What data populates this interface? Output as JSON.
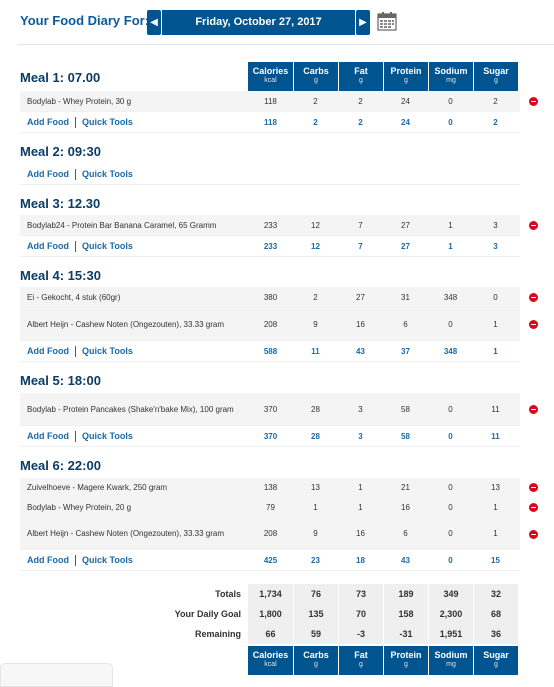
{
  "header": {
    "label": "Your Food Diary For:",
    "date": "Friday, October 27, 2017",
    "prev_arrow": "◀",
    "next_arrow": "▶",
    "calendar_icon": "calendar-icon"
  },
  "columns": [
    {
      "title": "Calories",
      "unit": "kcal"
    },
    {
      "title": "Carbs",
      "unit": "g"
    },
    {
      "title": "Fat",
      "unit": "g"
    },
    {
      "title": "Protein",
      "unit": "g"
    },
    {
      "title": "Sodium",
      "unit": "mg"
    },
    {
      "title": "Sugar",
      "unit": "g"
    }
  ],
  "links": {
    "add_food": "Add Food",
    "quick_tools": "Quick Tools"
  },
  "meals": [
    {
      "title": "Meal 1: 07.00",
      "foods": [
        {
          "name": "Bodylab - Whey Protein, 30 g",
          "values": [
            "118",
            "2",
            "2",
            "24",
            "0",
            "2"
          ]
        }
      ],
      "totals": [
        "118",
        "2",
        "2",
        "24",
        "0",
        "2"
      ]
    },
    {
      "title": "Meal 2: 09:30",
      "foods": [],
      "totals": []
    },
    {
      "title": "Meal 3: 12.30",
      "foods": [
        {
          "name": "Bodylab24 - Protein Bar Banana Caramel, 65 Gramm",
          "values": [
            "233",
            "12",
            "7",
            "27",
            "1",
            "3"
          ]
        }
      ],
      "totals": [
        "233",
        "12",
        "7",
        "27",
        "1",
        "3"
      ]
    },
    {
      "title": "Meal 4: 15:30",
      "foods": [
        {
          "name": "Ei - Gekocht, 4 stuk (60gr)",
          "values": [
            "380",
            "2",
            "27",
            "31",
            "348",
            "0"
          ]
        },
        {
          "name": "Albert Heijn - Cashew Noten (Ongezouten), 33.33 gram",
          "values": [
            "208",
            "9",
            "16",
            "6",
            "0",
            "1"
          ]
        }
      ],
      "totals": [
        "588",
        "11",
        "43",
        "37",
        "348",
        "1"
      ]
    },
    {
      "title": "Meal 5: 18:00",
      "foods": [
        {
          "name": "Bodylab - Protein Pancakes (Shake'n'bake Mix), 100 gram",
          "values": [
            "370",
            "28",
            "3",
            "58",
            "0",
            "11"
          ]
        }
      ],
      "totals": [
        "370",
        "28",
        "3",
        "58",
        "0",
        "11"
      ]
    },
    {
      "title": "Meal 6: 22:00",
      "foods": [
        {
          "name": "Zuivelhoeve - Magere Kwark, 250 gram",
          "values": [
            "138",
            "13",
            "1",
            "21",
            "0",
            "13"
          ]
        },
        {
          "name": "Bodylab - Whey Protein, 20 g",
          "values": [
            "79",
            "1",
            "1",
            "16",
            "0",
            "1"
          ]
        },
        {
          "name": "Albert Heijn - Cashew Noten (Ongezouten), 33.33 gram",
          "values": [
            "208",
            "9",
            "16",
            "6",
            "0",
            "1"
          ]
        }
      ],
      "totals": [
        "425",
        "23",
        "18",
        "43",
        "0",
        "15"
      ]
    }
  ],
  "summary": {
    "totals": {
      "label": "Totals",
      "values": [
        "1,734",
        "76",
        "73",
        "189",
        "349",
        "32"
      ]
    },
    "goal": {
      "label": "Your Daily Goal",
      "values": [
        "1,800",
        "135",
        "70",
        "158",
        "2,300",
        "68"
      ]
    },
    "remaining": {
      "label": "Remaining",
      "values": [
        "66",
        "59",
        "-3",
        "-31",
        "1,951",
        "36"
      ]
    }
  },
  "colors": {
    "header_blue": "#00548f",
    "link_blue": "#1a6aa8",
    "positive": "#1a8a1a",
    "negative": "#d6081c"
  }
}
